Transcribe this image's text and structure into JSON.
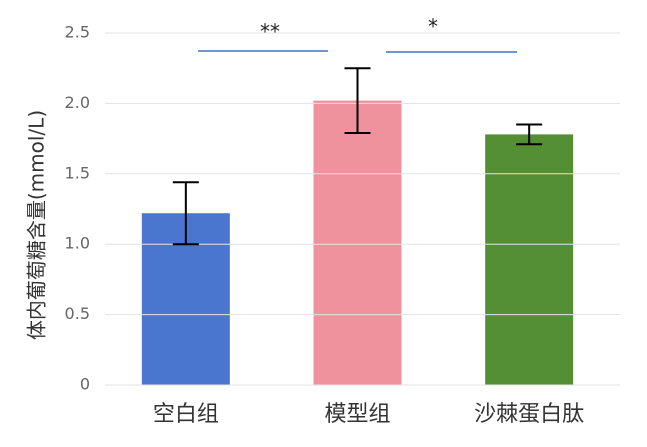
{
  "chart_data": {
    "type": "bar",
    "y_label": "体内葡萄糖含量(mmol/L)",
    "categories": [
      "空白组",
      "模型组",
      "沙棘蛋白肽"
    ],
    "values": [
      1.22,
      2.02,
      1.78
    ],
    "errors": [
      0.22,
      0.23,
      0.07
    ],
    "colors": [
      "#4a76cf",
      "#ef929e",
      "#558f35"
    ],
    "ylim": [
      0,
      2.5
    ],
    "yticks": [
      0,
      0.5,
      {
        "value": 1,
        "label": "1.0"
      },
      1.5,
      {
        "value": 2,
        "label": "2.0"
      },
      2.5
    ],
    "grid": true,
    "annotations": [
      "**",
      "*"
    ]
  }
}
